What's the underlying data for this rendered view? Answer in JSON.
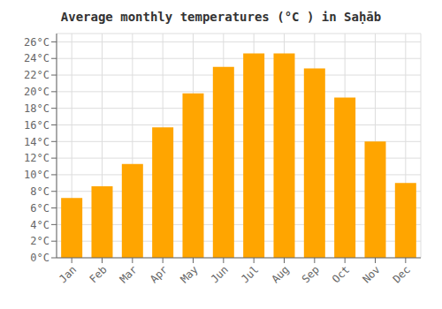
{
  "chart_data": {
    "type": "bar",
    "title": "Average monthly temperatures (°C ) in Saḥāb",
    "categories": [
      "Jan",
      "Feb",
      "Mar",
      "Apr",
      "May",
      "Jun",
      "Jul",
      "Aug",
      "Sep",
      "Oct",
      "Nov",
      "Dec"
    ],
    "values": [
      7.2,
      8.6,
      11.3,
      15.7,
      19.8,
      23.0,
      24.6,
      24.6,
      22.8,
      19.3,
      14.0,
      9.0
    ],
    "color": "#FFA500",
    "ylim": [
      0,
      27
    ],
    "yticks": [
      {
        "value": 0,
        "label": "0°C"
      },
      {
        "value": 2,
        "label": "2°C"
      },
      {
        "value": 4,
        "label": "4°C"
      },
      {
        "value": 6,
        "label": "6°C"
      },
      {
        "value": 8,
        "label": "8°C"
      },
      {
        "value": 10,
        "label": "10°C"
      },
      {
        "value": 12,
        "label": "12°C"
      },
      {
        "value": 14,
        "label": "14°C"
      },
      {
        "value": 16,
        "label": "16°C"
      },
      {
        "value": 18,
        "label": "18°C"
      },
      {
        "value": 20,
        "label": "20°C"
      },
      {
        "value": 22,
        "label": "22°C"
      },
      {
        "value": 24,
        "label": "24°C"
      },
      {
        "value": 26,
        "label": "26°C"
      }
    ],
    "grid": true
  }
}
